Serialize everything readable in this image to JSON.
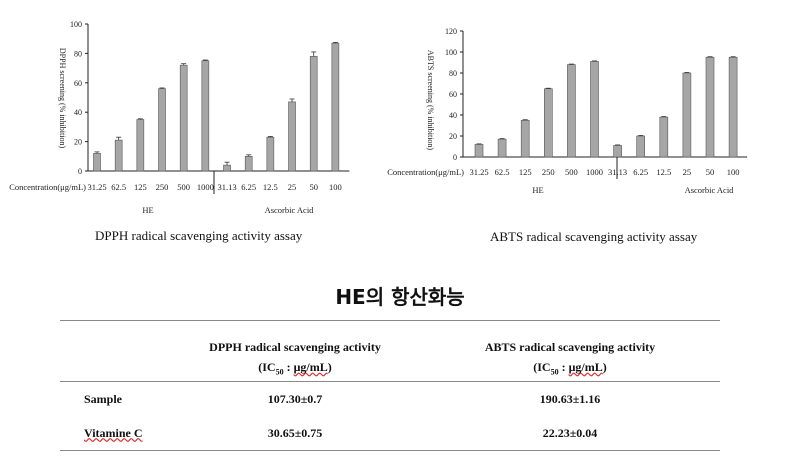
{
  "chart_data": [
    {
      "type": "bar",
      "ylabel": "DPPH screening (% inhibition)",
      "ylim": [
        0,
        100
      ],
      "yticks": [
        0,
        20,
        40,
        60,
        80,
        100
      ],
      "axis_prefix": "Concentration(μg/mL)",
      "categories": [
        "31.25",
        "62.5",
        "125",
        "250",
        "500",
        "1000",
        "31.13",
        "6.25",
        "12.5",
        "25",
        "50",
        "100"
      ],
      "groups": [
        {
          "name": "HE",
          "values": [
            12,
            21,
            35,
            56,
            72,
            75
          ],
          "errors": [
            1,
            2,
            0.5,
            0.5,
            1,
            0.5
          ]
        },
        {
          "name": "Ascorbic Acid",
          "values": [
            4,
            10,
            23,
            47,
            78,
            87
          ],
          "errors": [
            2,
            1,
            0.5,
            2,
            3,
            0.5
          ]
        }
      ],
      "caption": "DPPH radical scavenging activity assay",
      "grid": false,
      "bar_color": "#a6a6a6"
    },
    {
      "type": "bar",
      "ylabel": "ABTS screening (% inhibition)",
      "ylim": [
        0,
        120
      ],
      "yticks": [
        0,
        20,
        40,
        60,
        80,
        100,
        120
      ],
      "axis_prefix": "Concentration(μg/mL)",
      "categories": [
        "31.25",
        "62.5",
        "125",
        "250",
        "500",
        "1000",
        "31.13",
        "6.25",
        "12.5",
        "25",
        "50",
        "100"
      ],
      "groups": [
        {
          "name": "HE",
          "values": [
            12,
            17,
            35,
            65,
            88,
            91
          ],
          "errors": [
            0.5,
            0.5,
            0.5,
            0.5,
            0.5,
            0.5
          ]
        },
        {
          "name": "Ascorbic Acid",
          "values": [
            11,
            20,
            38,
            80,
            95,
            95
          ],
          "errors": [
            0.5,
            0.5,
            0.5,
            0.5,
            0.5,
            0.5
          ]
        }
      ],
      "caption": "ABTS radical scavenging activity assay",
      "grid": false,
      "bar_color": "#a6a6a6"
    }
  ],
  "title": "HE의 항산화능",
  "table": {
    "headers": [
      "DPPH radical scavenging activity",
      "ABTS radical scavenging activity"
    ],
    "unit_prefix": "(IC",
    "unit_sub": "50",
    "unit_colon": " : ",
    "unit_mu": "μg/mL",
    "unit_suffix": ")",
    "rows": [
      {
        "label": "Sample",
        "dpph": "107.30±0.7",
        "abts": "190.63±1.16"
      },
      {
        "label": "Vitamine C",
        "dpph": "30.65±0.75",
        "abts": "22.23±0.04"
      }
    ]
  }
}
